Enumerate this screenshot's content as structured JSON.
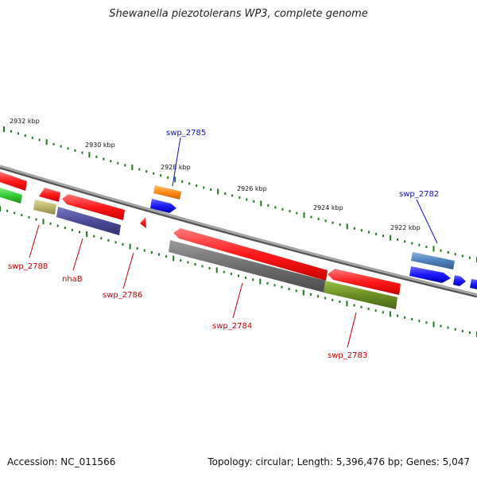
{
  "title": "Shewanella piezotolerans WP3, complete genome",
  "footer": {
    "accession": "Accession: NC_011566",
    "summary": "Topology: circular; Length: 5,396,476 bp; Genes: 5,047"
  },
  "scale_labels": [
    "2932 kbp",
    "2930 kbp",
    "2928 kbp",
    "2926 kbp",
    "2924 kbp",
    "2922 kbp"
  ],
  "gene_labels": [
    {
      "id": "swp_2785",
      "color": "#1010c0"
    },
    {
      "id": "swp_2782",
      "color": "#1010c0"
    },
    {
      "id": "swp_2788",
      "color": "#cc0000"
    },
    {
      "id": "nhaB",
      "color": "#cc0000"
    },
    {
      "id": "swp_2786",
      "color": "#cc0000"
    },
    {
      "id": "swp_2784",
      "color": "#cc0000"
    },
    {
      "id": "swp_2783",
      "color": "#cc0000"
    }
  ],
  "colors": {
    "backbone": "#8a8a8a",
    "tick": "#1e7a1e",
    "red_gene": "#ff1a1a",
    "blue_gene": "#1a1aff",
    "gray_gene": "#6e6e6e",
    "olive_gene": "#6b8e23",
    "navy_gene": "#4b4b9a",
    "khaki_gene": "#bdb76b",
    "orange_gene": "#ff8c1a",
    "steel_gene": "#4f81bd",
    "green_gene": "#33cc33"
  }
}
